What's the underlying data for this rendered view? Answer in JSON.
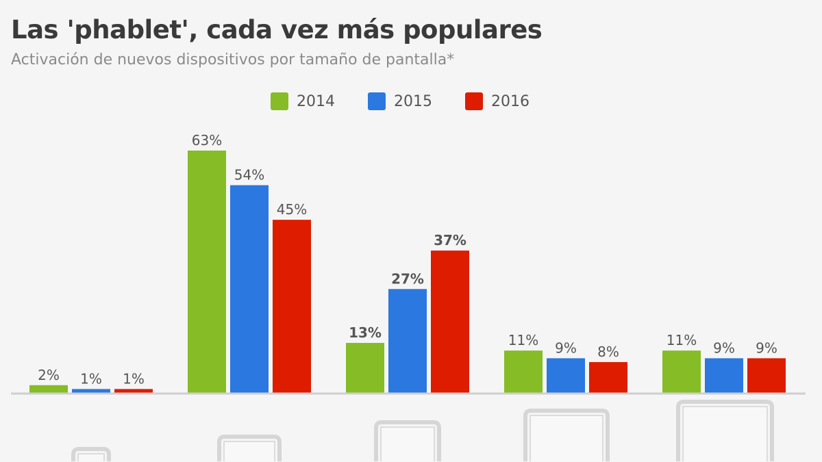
{
  "title": "Las 'phablet', cada vez más populares",
  "subtitle": "Activación de nuevos dispositivos por tamaño de pantalla*",
  "chart_data": {
    "type": "bar",
    "title": "Las 'phablet', cada vez más populares",
    "subtitle": "Activación de nuevos dispositivos por tamaño de pantalla*",
    "categories": [
      "device-size-1",
      "device-size-2",
      "device-size-3",
      "device-size-4",
      "device-size-5"
    ],
    "category_icons": [
      "small-phone-icon",
      "phone-icon",
      "phablet-icon",
      "small-tablet-icon",
      "large-tablet-icon"
    ],
    "series": [
      {
        "name": "2014",
        "color": "#86bc25",
        "values": [
          2,
          63,
          13,
          11,
          11
        ],
        "labels": [
          "2%",
          "63%",
          "13%",
          "11%",
          "11%"
        ]
      },
      {
        "name": "2015",
        "color": "#2a78e0",
        "values": [
          1,
          54,
          27,
          9,
          9
        ],
        "labels": [
          "1%",
          "54%",
          "27%",
          "9%",
          "9%"
        ]
      },
      {
        "name": "2016",
        "color": "#dd1c00",
        "values": [
          1,
          45,
          37,
          8,
          9
        ],
        "labels": [
          "1%",
          "45%",
          "37%",
          "8%",
          "9%"
        ]
      }
    ],
    "highlighted_category": "device-size-3",
    "ylim": [
      0,
      63
    ],
    "grid": false,
    "legend_placement": "top-center",
    "unit": "%"
  }
}
